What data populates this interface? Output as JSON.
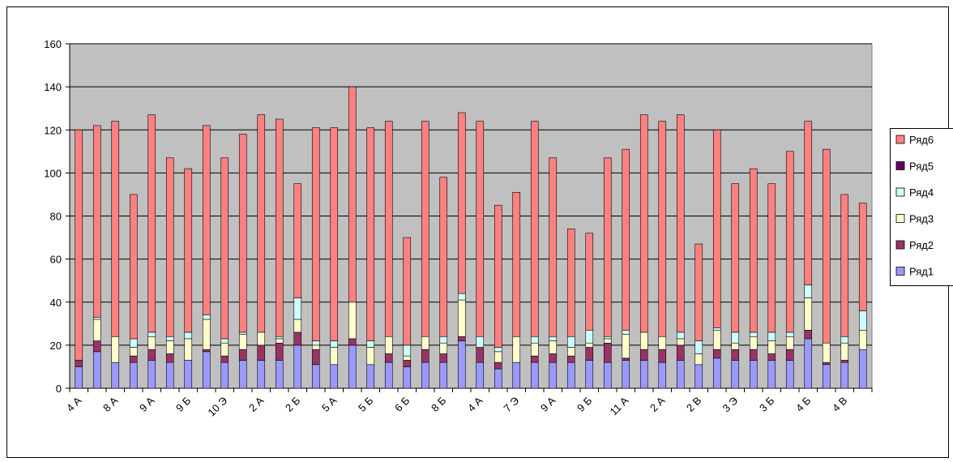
{
  "chart_data": {
    "type": "stacked_bar",
    "categories": [
      "4 А",
      null,
      "8 А",
      null,
      "9 А",
      null,
      "9 Б",
      null,
      "10 Э",
      null,
      "2 А",
      null,
      "2 Б",
      null,
      "5 А",
      null,
      "5 Б",
      null,
      "6 Б",
      null,
      "8 Б",
      null,
      "4 А",
      null,
      "7 Э",
      null,
      "9 А",
      null,
      "9 Б",
      null,
      "11 А",
      null,
      "2 А",
      null,
      "2 В",
      null,
      "3 Э",
      null,
      "3 Б",
      null,
      "4 Б",
      null,
      "4 В",
      null
    ],
    "series": [
      {
        "name": "Ряд1",
        "color": "#9999ff",
        "values": [
          10,
          17,
          12,
          12,
          13,
          12,
          13,
          17,
          12,
          13,
          13,
          13,
          20,
          11,
          11,
          20,
          11,
          12,
          10,
          12,
          12,
          22,
          12,
          9,
          12,
          12,
          12,
          12,
          13,
          12,
          13,
          13,
          12,
          13,
          11,
          14,
          13,
          13,
          13,
          13,
          23,
          11,
          12,
          18
        ]
      },
      {
        "name": "Ряд2",
        "color": "#993366",
        "values": [
          3,
          5,
          0,
          3,
          5,
          4,
          0,
          1,
          3,
          5,
          7,
          8,
          6,
          7,
          0,
          3,
          0,
          4,
          3,
          6,
          4,
          2,
          7,
          3,
          0,
          3,
          4,
          3,
          6,
          9,
          1,
          5,
          6,
          7,
          0,
          4,
          5,
          5,
          3,
          5,
          4,
          1,
          1,
          0
        ]
      },
      {
        "name": "Ряд3",
        "color": "#ffffcc",
        "values": [
          0,
          10,
          12,
          4,
          6,
          6,
          10,
          14,
          6,
          7,
          6,
          2,
          6,
          2,
          8,
          17,
          8,
          8,
          2,
          6,
          5,
          17,
          0,
          5,
          12,
          6,
          6,
          4,
          2,
          2,
          11,
          8,
          6,
          3,
          5,
          9,
          3,
          6,
          6,
          6,
          15,
          9,
          8,
          9
        ]
      },
      {
        "name": "Ряд4",
        "color": "#ccffff",
        "values": [
          0,
          1,
          0,
          4,
          2,
          2,
          3,
          2,
          2,
          1,
          0,
          1,
          10,
          2,
          3,
          0,
          3,
          0,
          5,
          0,
          3,
          3,
          5,
          2,
          0,
          3,
          2,
          5,
          6,
          1,
          2,
          0,
          0,
          3,
          6,
          1,
          5,
          2,
          4,
          2,
          6,
          0,
          3,
          9
        ]
      },
      {
        "name": "Ряд5",
        "color": "#660066",
        "values": [
          0,
          0,
          0,
          0,
          0,
          0,
          0,
          0,
          0,
          0,
          0,
          0,
          0,
          0,
          0,
          0,
          0,
          0,
          0,
          0,
          0,
          0,
          0,
          0,
          0,
          0,
          0,
          0,
          0,
          0,
          0,
          0,
          0,
          0,
          0,
          0,
          0,
          0,
          0,
          0,
          0,
          0,
          0,
          0
        ]
      },
      {
        "name": "Ряд6",
        "color": "#ff8080",
        "values": [
          107,
          89,
          100,
          67,
          101,
          83,
          76,
          88,
          84,
          92,
          101,
          101,
          53,
          99,
          99,
          100,
          99,
          100,
          50,
          100,
          74,
          84,
          100,
          66,
          67,
          100,
          83,
          50,
          45,
          83,
          84,
          101,
          100,
          101,
          45,
          92,
          69,
          76,
          69,
          84,
          76,
          90,
          66,
          50
        ]
      }
    ],
    "ylim": [
      0,
      160
    ],
    "yticks": [
      0,
      20,
      40,
      60,
      80,
      100,
      120,
      140,
      160
    ],
    "grid": true,
    "legend": "right"
  }
}
